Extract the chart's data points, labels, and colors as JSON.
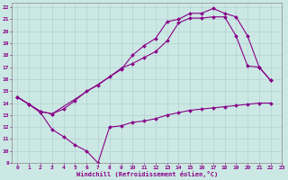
{
  "xlabel": "Windchill (Refroidissement éolien,°C)",
  "bg_color": "#cce8e4",
  "grid_color": "#aacccc",
  "line_color": "#880088",
  "xlim": [
    -0.5,
    23
  ],
  "ylim": [
    9,
    22.4
  ],
  "xticks": [
    0,
    1,
    2,
    3,
    4,
    5,
    6,
    7,
    8,
    9,
    10,
    11,
    12,
    13,
    14,
    15,
    16,
    17,
    18,
    19,
    20,
    21,
    22,
    23
  ],
  "yticks": [
    9,
    10,
    11,
    12,
    13,
    14,
    15,
    16,
    17,
    18,
    19,
    20,
    21,
    22
  ],
  "line1_x": [
    0,
    1,
    2,
    3,
    4,
    5,
    6,
    7,
    8,
    9,
    10,
    11,
    12,
    13,
    14,
    15,
    16,
    17,
    18,
    19,
    20,
    21,
    22
  ],
  "line1_y": [
    14.5,
    13.9,
    13.2,
    11.8,
    11.2,
    10.5,
    10.0,
    9.0,
    12.0,
    12.1,
    12.4,
    12.5,
    12.7,
    13.0,
    13.2,
    13.4,
    13.5,
    13.6,
    13.7,
    13.8,
    13.9,
    14.0,
    14.0
  ],
  "line2_x": [
    0,
    1,
    2,
    3,
    4,
    5,
    6,
    7,
    8,
    9,
    10,
    11,
    12,
    13,
    14,
    15,
    16,
    17,
    18,
    19,
    20,
    21,
    22
  ],
  "line2_y": [
    14.5,
    13.9,
    13.3,
    13.1,
    13.5,
    14.2,
    15.0,
    15.5,
    16.2,
    16.9,
    17.3,
    17.8,
    18.3,
    19.2,
    20.7,
    21.1,
    21.1,
    21.2,
    21.2,
    19.6,
    17.1,
    17.0,
    15.9
  ],
  "line3_x": [
    0,
    1,
    2,
    3,
    9,
    10,
    11,
    12,
    13,
    14,
    15,
    16,
    17,
    18,
    19,
    20,
    21,
    22
  ],
  "line3_y": [
    14.5,
    13.9,
    13.3,
    13.1,
    16.8,
    18.0,
    18.8,
    19.4,
    20.8,
    21.0,
    21.5,
    21.5,
    21.9,
    21.5,
    21.2,
    19.6,
    17.0,
    15.9
  ]
}
